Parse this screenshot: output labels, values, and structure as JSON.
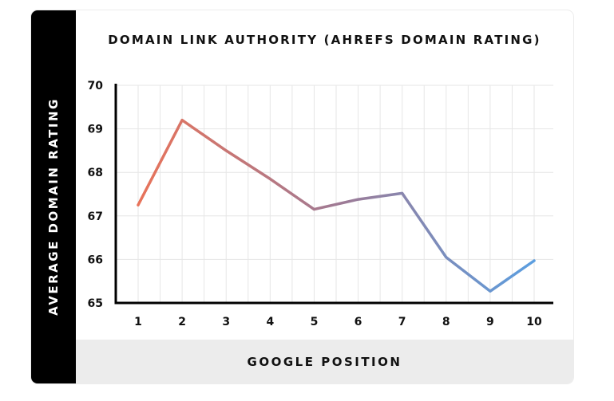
{
  "chart_data": {
    "type": "line",
    "title": "DOMAIN LINK AUTHORITY (AHREFS DOMAIN RATING)",
    "xlabel": "GOOGLE POSITION",
    "ylabel": "AVERAGE DOMAIN RATING",
    "x": [
      1,
      2,
      3,
      4,
      5,
      6,
      7,
      8,
      9,
      10
    ],
    "x_tick_labels": [
      "1",
      "2",
      "3",
      "4",
      "5",
      "6",
      "7",
      "8",
      "9",
      "10"
    ],
    "y_tick_labels": [
      "65",
      "66",
      "67",
      "68",
      "69",
      "70"
    ],
    "series": [
      {
        "values": [
          67.25,
          69.2,
          68.5,
          67.85,
          67.15,
          67.38,
          67.52,
          66.05,
          65.27,
          65.97
        ]
      }
    ],
    "ylim": [
      65,
      70
    ],
    "y_ticks": [
      65,
      66,
      67,
      68,
      69,
      70
    ],
    "grid": true,
    "legend": "none",
    "line_gradient": [
      "#e8735a",
      "#a07a94",
      "#5b9ee0"
    ]
  }
}
